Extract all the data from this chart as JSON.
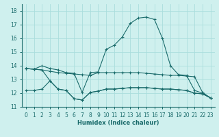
{
  "xlabel": "Humidex (Indice chaleur)",
  "background_color": "#cff0ee",
  "grid_color": "#aadddd",
  "line_color": "#1a6b6b",
  "xlim": [
    -0.5,
    23.5
  ],
  "ylim": [
    11,
    18.5
  ],
  "yticks": [
    11,
    12,
    13,
    14,
    15,
    16,
    17,
    18
  ],
  "xticks": [
    0,
    1,
    2,
    3,
    4,
    5,
    6,
    7,
    8,
    9,
    10,
    11,
    12,
    13,
    14,
    15,
    16,
    17,
    18,
    19,
    20,
    21,
    22,
    23
  ],
  "s0": [
    13.8,
    13.75,
    13.7,
    13.6,
    13.5,
    13.45,
    13.4,
    13.35,
    13.3,
    13.5,
    13.5,
    13.5,
    13.5,
    13.5,
    13.5,
    13.45,
    13.4,
    13.35,
    13.3,
    13.3,
    13.25,
    13.2,
    12.05,
    11.65
  ],
  "s1": [
    13.8,
    13.75,
    13.7,
    12.9,
    12.3,
    12.2,
    11.6,
    11.5,
    12.05,
    12.15,
    12.3,
    12.3,
    12.35,
    12.4,
    12.4,
    12.4,
    12.35,
    12.3,
    12.3,
    12.25,
    12.2,
    12.0,
    11.95,
    11.65
  ],
  "s2": [
    12.2,
    12.2,
    12.3,
    12.9,
    12.3,
    12.2,
    11.6,
    11.5,
    12.05,
    12.15,
    12.3,
    12.3,
    12.35,
    12.4,
    12.4,
    12.4,
    12.35,
    12.3,
    12.3,
    12.25,
    12.2,
    12.0,
    11.95,
    11.65
  ],
  "s3": [
    13.8,
    13.75,
    14.0,
    13.8,
    13.7,
    13.5,
    13.45,
    12.05,
    13.5,
    13.55,
    15.2,
    15.5,
    16.1,
    17.1,
    17.48,
    17.55,
    17.38,
    16.0,
    14.0,
    13.35,
    13.3,
    12.2,
    12.0,
    11.65
  ]
}
